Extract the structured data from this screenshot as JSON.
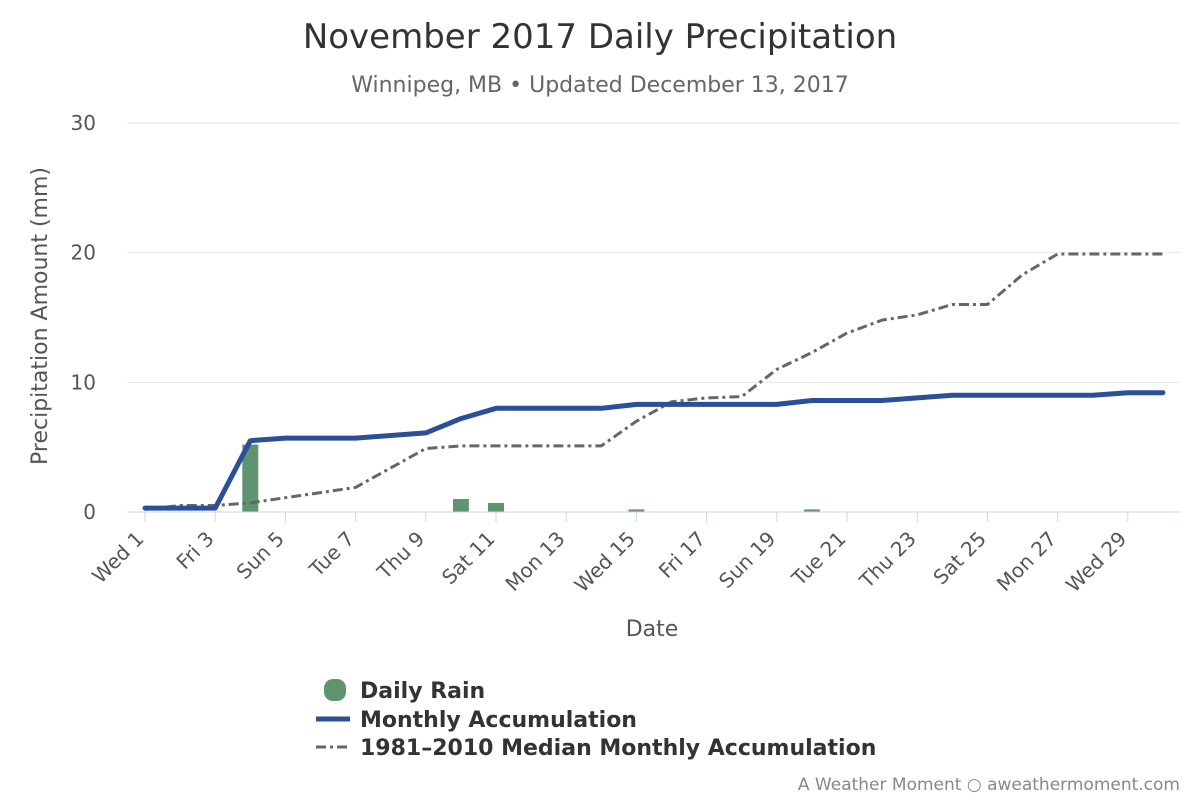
{
  "chart_data": {
    "type": "bar+line",
    "title": "November 2017 Daily Precipitation",
    "subtitle": "Winnipeg, MB • Updated December 13, 2017",
    "xlabel": "Date",
    "ylabel": "Precipitation Amount (mm)",
    "ylim": [
      0,
      30
    ],
    "yticks": [
      0,
      10,
      20,
      30
    ],
    "grid": "horizontal",
    "legend_position": "bottom",
    "x": [
      1,
      2,
      3,
      4,
      5,
      6,
      7,
      8,
      9,
      10,
      11,
      12,
      13,
      14,
      15,
      16,
      17,
      18,
      19,
      20,
      21,
      22,
      23,
      24,
      25,
      26,
      27,
      28,
      29,
      30
    ],
    "x_tick_labels": [
      "Wed 1",
      "Fri 3",
      "Sun 5",
      "Tue 7",
      "Thu 9",
      "Sat 11",
      "Mon 13",
      "Wed 15",
      "Fri 17",
      "Sun 19",
      "Tue 21",
      "Thu 23",
      "Sat 25",
      "Mon 27",
      "Wed 29"
    ],
    "x_tick_days": [
      1,
      3,
      5,
      7,
      9,
      11,
      13,
      15,
      17,
      19,
      21,
      23,
      25,
      27,
      29
    ],
    "series": [
      {
        "name": "Daily Rain",
        "type": "bar",
        "color": "#5e9470",
        "values": [
          0,
          0,
          0,
          5.2,
          0,
          0,
          0,
          0,
          0,
          1.0,
          0.7,
          0,
          0,
          0,
          0.2,
          0,
          0,
          0,
          0,
          0.2,
          0,
          0,
          0,
          0,
          0,
          0,
          0,
          0,
          0,
          0
        ]
      },
      {
        "name": "Monthly Accumulation",
        "type": "line",
        "color": "#2b4f99",
        "values": [
          0.3,
          0.3,
          0.3,
          5.5,
          5.7,
          5.7,
          5.7,
          5.9,
          6.1,
          7.2,
          8.0,
          8.0,
          8.0,
          8.0,
          8.3,
          8.3,
          8.3,
          8.3,
          8.3,
          8.6,
          8.6,
          8.6,
          8.8,
          9.0,
          9.0,
          9.0,
          9.0,
          9.0,
          9.2,
          9.2
        ]
      },
      {
        "name": "1981–2010 Median Monthly Accumulation",
        "type": "line",
        "dash": "dash-dot",
        "color": "#666666",
        "values": [
          0.2,
          0.5,
          0.5,
          0.7,
          1.1,
          1.5,
          1.9,
          3.4,
          4.9,
          5.1,
          5.1,
          5.1,
          5.1,
          5.1,
          7.0,
          8.5,
          8.8,
          8.9,
          11.0,
          12.3,
          13.8,
          14.8,
          15.2,
          16.0,
          16.0,
          18.3,
          19.9,
          19.9,
          19.9,
          19.9
        ]
      }
    ]
  },
  "credits": "A Weather Moment ○ aweathermoment.com"
}
